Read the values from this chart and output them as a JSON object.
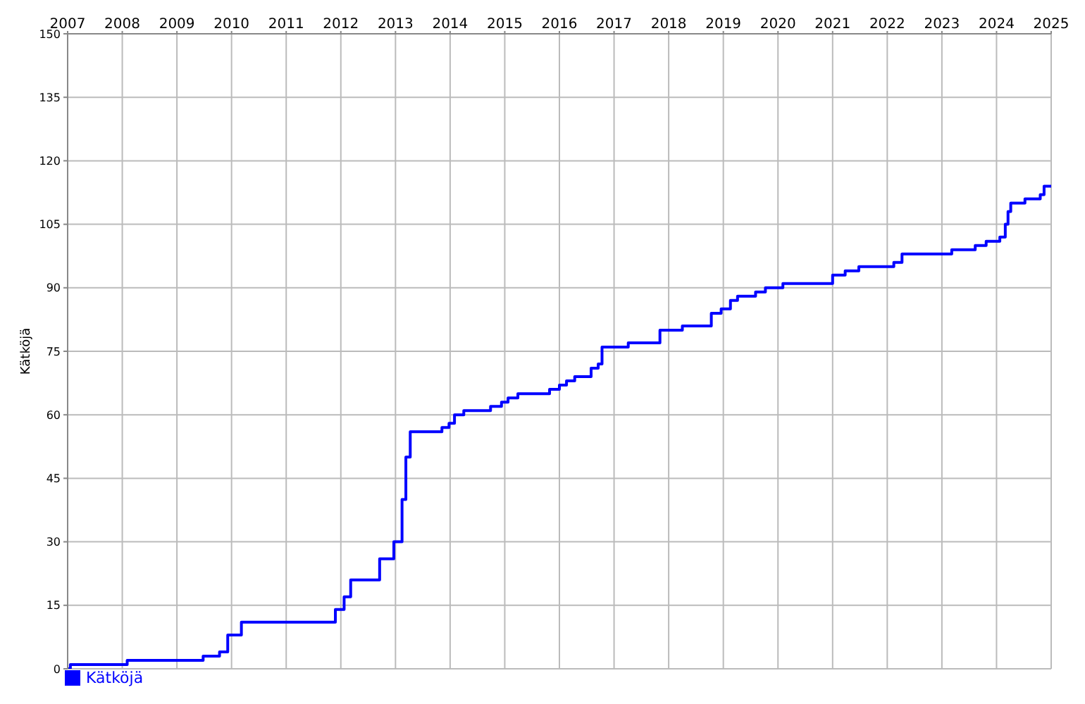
{
  "chart_data": {
    "type": "step",
    "ylabel": "Kätköjä",
    "xlim": [
      2007,
      2025
    ],
    "xticks": [
      2007,
      2008,
      2009,
      2010,
      2011,
      2012,
      2013,
      2014,
      2015,
      2016,
      2017,
      2018,
      2019,
      2020,
      2021,
      2022,
      2023,
      2024,
      2025
    ],
    "ylim": [
      0,
      150
    ],
    "yticks": [
      0,
      15,
      30,
      45,
      60,
      75,
      90,
      105,
      120,
      135,
      150
    ],
    "grid": true,
    "legend": "bottom left",
    "marker": "none",
    "line_style": "solid",
    "series": [
      {
        "name": "Kätköjä",
        "color": "#0000ff",
        "x": [
          2007,
          2007.05,
          2008.09,
          2009.48,
          2009.78,
          2009.93,
          2010.18,
          2011.9,
          2012.06,
          2012.18,
          2012.71,
          2012.97,
          2013.12,
          2013.19,
          2013.27,
          2013.85,
          2013.98,
          2014.08,
          2014.25,
          2014.74,
          2014.94,
          2015.06,
          2015.24,
          2015.82,
          2016,
          2016.13,
          2016.28,
          2016.58,
          2016.71,
          2016.78,
          2017.26,
          2017.84,
          2018.25,
          2018.78,
          2018.96,
          2019.13,
          2019.26,
          2019.59,
          2019.77,
          2020.09,
          2021,
          2021.23,
          2021.48,
          2022.12,
          2022.27,
          2023.18,
          2023.61,
          2023.81,
          2024.06,
          2024.16,
          2024.21,
          2024.26,
          2024.52,
          2024.8,
          2024.87,
          2025
        ],
        "values": [
          0,
          1,
          2,
          3,
          4,
          8,
          11,
          14,
          17,
          21,
          26,
          30,
          40,
          50,
          56,
          57,
          58,
          60,
          61,
          62,
          63,
          64,
          65,
          66,
          67,
          68,
          69,
          71,
          72,
          76,
          77,
          80,
          81,
          84,
          85,
          87,
          88,
          89,
          90,
          91,
          93,
          94,
          95,
          96,
          98,
          99,
          100,
          101,
          102,
          105,
          108,
          110,
          111,
          112,
          114,
          114
        ]
      }
    ]
  }
}
